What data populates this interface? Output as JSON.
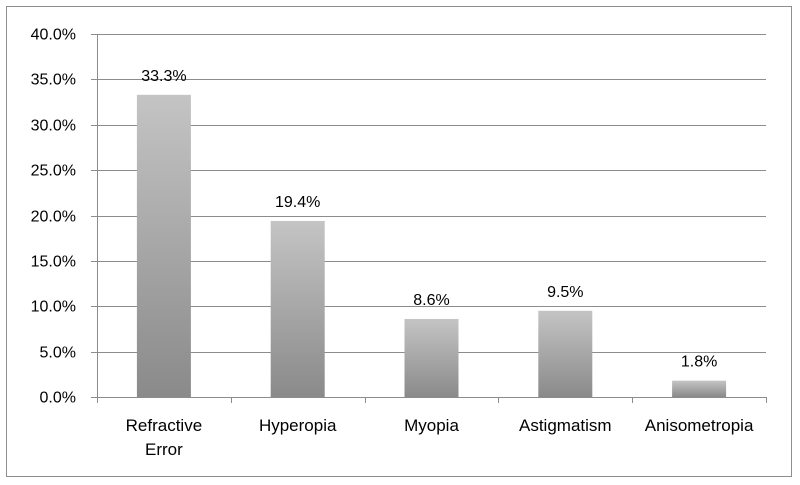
{
  "chart_data": {
    "type": "bar",
    "title": "",
    "xlabel": "",
    "ylabel": "",
    "categories": [
      [
        "Refractive",
        "Error"
      ],
      [
        "Hyperopia"
      ],
      [
        "Myopia"
      ],
      [
        "Astigmatism"
      ],
      [
        "Anisometropia"
      ]
    ],
    "values": [
      33.3,
      19.4,
      8.6,
      9.5,
      1.8
    ],
    "data_labels": [
      "33.3%",
      "19.4%",
      "8.6%",
      "9.5%",
      "1.8%"
    ],
    "ylim": [
      0,
      40
    ],
    "yticks": [
      0,
      5,
      10,
      15,
      20,
      25,
      30,
      35,
      40
    ],
    "ytick_labels": [
      "0.0%",
      "5.0%",
      "10.0%",
      "15.0%",
      "20.0%",
      "25.0%",
      "30.0%",
      "35.0%",
      "40.0%"
    ],
    "grid": true,
    "legend": "none",
    "colors": {
      "bar_top": "#c4c4c4",
      "bar_bottom": "#8a8a8a",
      "grid": "#8c8c8c",
      "axis": "#8c8c8c"
    }
  }
}
